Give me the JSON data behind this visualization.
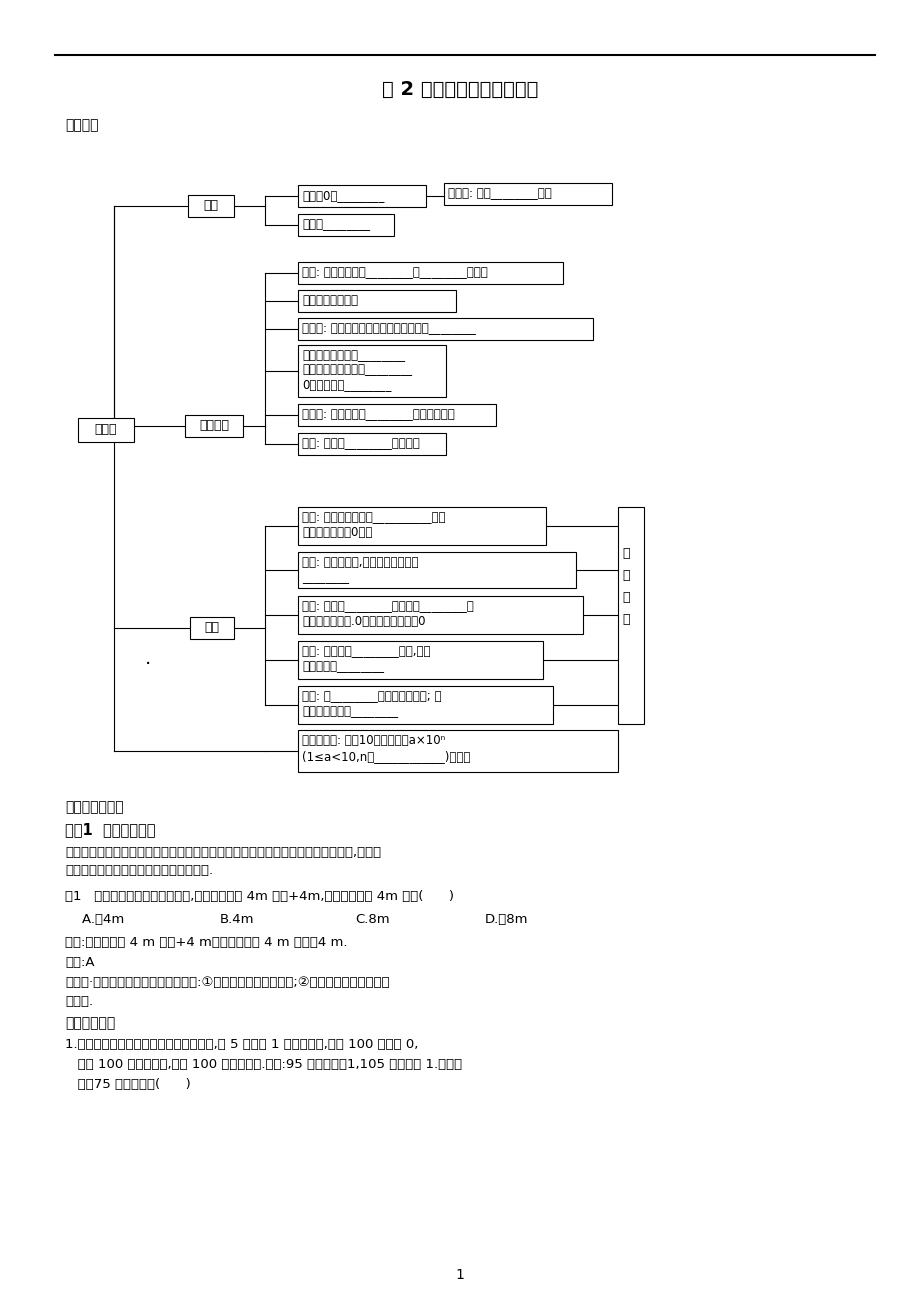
{
  "title": "第 2 章《有理数》考点归纳",
  "subtitle": "知识梳理",
  "bg_color": "#ffffff",
  "text_color": "#000000",
  "section2_title": "重难点分类解析",
  "kaodian1": "考点1  相反意义的量",
  "kaodian1_jieda1": "【考点解读】中考中对于相反意义的量的考查主要涉及用正负数表示相反意义的量,解此类",
  "kaodian1_jieda2": "题的关键是要深刻理解正数、负数的意义.",
  "example1": "例1   一个物体做左右方向的运动,规定向右运动 4m 记作+4m,那么向左运动 4m 记作(      )",
  "options1a": "    A.－4m",
  "options1b": "B.4m",
  "options1c": "C.8m",
  "options1d": "D.－8m",
  "analysis1": "分析:若向右运动 4 m 记作+4 m，则向左运动 4 m 记作－4 m.",
  "answer1": "答案:A",
  "guilu1a": "【规律·技法】解题时要抓住以下几点:①记住区分相反意义的量;②记住相反意义的量的表",
  "guilu1b": "示方法.",
  "fankui": "【反馈练习】",
  "fankui1a": "1.某财务科为保密起见采取新的记账方式,以 5 万元为 1 个记数单位,并记 100 万元为 0,",
  "fankui1b": "   少于 100 万元记为负,多于 100 万元记为正.例如:95 万元记为－1,105 万元记为 1.依此类",
  "fankui1c": "   推，75 万元应记为(      )",
  "page_num": "1"
}
